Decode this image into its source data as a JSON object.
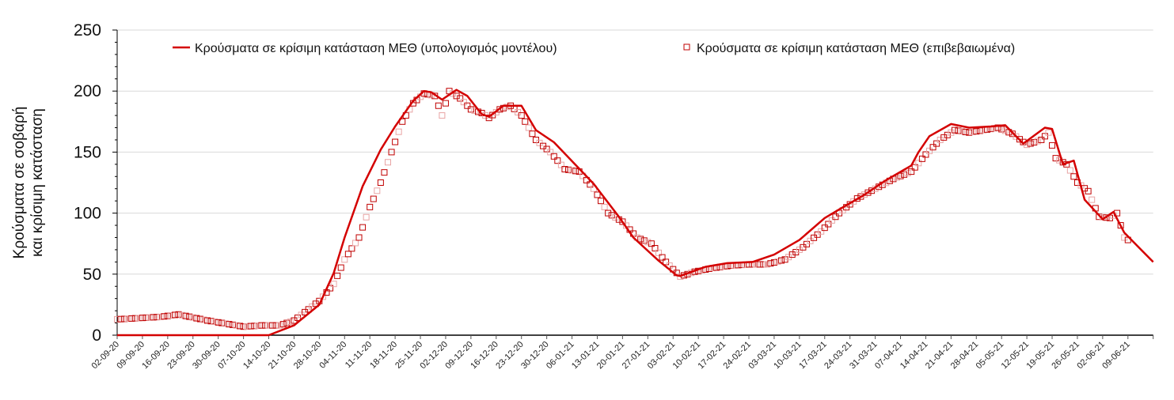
{
  "chart_data": {
    "type": "line",
    "title": "",
    "ylabel": [
      "Κρούσματα σε σοβαρή",
      "και κρίσιμη κατάσταση"
    ],
    "xlabel": "",
    "ylim": [
      0,
      250
    ],
    "yticks": [
      0,
      50,
      100,
      150,
      200,
      250
    ],
    "x_day_range": [
      0,
      287
    ],
    "x_tick_interval_days": 7,
    "x_tick_labels": [
      "02-09-20",
      "09-09-20",
      "16-09-20",
      "23-09-20",
      "30-09-20",
      "07-10-20",
      "14-10-20",
      "21-10-20",
      "28-10-20",
      "04-11-20",
      "11-11-20",
      "18-11-20",
      "25-11-20",
      "02-12-20",
      "09-12-20",
      "16-12-20",
      "23-12-20",
      "30-12-20",
      "06-01-21",
      "13-01-21",
      "20-01-21",
      "27-01-21",
      "03-02-21",
      "10-02-21",
      "17-02-21",
      "24-02-21",
      "03-03-21",
      "10-03-21",
      "17-03-21",
      "24-03-21",
      "31-03-21",
      "07-04-21",
      "14-04-21",
      "21-04-21",
      "28-04-21",
      "05-05-21",
      "12-05-21",
      "19-05-21",
      "26-05-21",
      "02-06-21",
      "09-06-21"
    ],
    "grid": true,
    "legend_position": "top",
    "series": [
      {
        "name": "Κρούσματα σε κρίσιμη κατάσταση ΜΕΘ (υπολογισμός μοντέλου)",
        "style": "line",
        "color": "#d40000",
        "points": [
          [
            0,
            0
          ],
          [
            42,
            0
          ],
          [
            49,
            8
          ],
          [
            56,
            25
          ],
          [
            60,
            51
          ],
          [
            63,
            80
          ],
          [
            68,
            122
          ],
          [
            73,
            152
          ],
          [
            77,
            171
          ],
          [
            82,
            192
          ],
          [
            85,
            200
          ],
          [
            87,
            199
          ],
          [
            90,
            193
          ],
          [
            94,
            201
          ],
          [
            97,
            196
          ],
          [
            101,
            181
          ],
          [
            103,
            179
          ],
          [
            107,
            188
          ],
          [
            112,
            188
          ],
          [
            116,
            168
          ],
          [
            121,
            158
          ],
          [
            132,
            124
          ],
          [
            139,
            97
          ],
          [
            143,
            80
          ],
          [
            150,
            61
          ],
          [
            155,
            49
          ],
          [
            156,
            48.5
          ],
          [
            163,
            56
          ],
          [
            169,
            59
          ],
          [
            176,
            60
          ],
          [
            182,
            66
          ],
          [
            189,
            78
          ],
          [
            196,
            96
          ],
          [
            200,
            103
          ],
          [
            207,
            115
          ],
          [
            213,
            127
          ],
          [
            220,
            139
          ],
          [
            222,
            150
          ],
          [
            225,
            163
          ],
          [
            231,
            173
          ],
          [
            236,
            170
          ],
          [
            242,
            171
          ],
          [
            246,
            172
          ],
          [
            251,
            157
          ],
          [
            257,
            170
          ],
          [
            259,
            169
          ],
          [
            262,
            140
          ],
          [
            265,
            143
          ],
          [
            268,
            111
          ],
          [
            273,
            95
          ],
          [
            276,
            101
          ],
          [
            279,
            84
          ],
          [
            284,
            69
          ],
          [
            287,
            60
          ]
        ]
      },
      {
        "name": "Κρούσματα σε κρίσιμη κατάσταση ΜΕΘ (επιβεβαιωμένα)",
        "style": "square-markers",
        "color": "#c00000",
        "points": [
          [
            0,
            13
          ],
          [
            12,
            15
          ],
          [
            17,
            17
          ],
          [
            25,
            12
          ],
          [
            35,
            7
          ],
          [
            40,
            8
          ],
          [
            45,
            8
          ],
          [
            49,
            12
          ],
          [
            56,
            28
          ],
          [
            60,
            42
          ],
          [
            63,
            62
          ],
          [
            67,
            80
          ],
          [
            70,
            105
          ],
          [
            73,
            125
          ],
          [
            76,
            150
          ],
          [
            79,
            175
          ],
          [
            82,
            190
          ],
          [
            85,
            198
          ],
          [
            88,
            196
          ],
          [
            90,
            180
          ],
          [
            92,
            200
          ],
          [
            95,
            194
          ],
          [
            98,
            185
          ],
          [
            101,
            182
          ],
          [
            103,
            178
          ],
          [
            106,
            185
          ],
          [
            109,
            188
          ],
          [
            112,
            180
          ],
          [
            116,
            160
          ],
          [
            120,
            150
          ],
          [
            124,
            136
          ],
          [
            128,
            134
          ],
          [
            132,
            120
          ],
          [
            136,
            100
          ],
          [
            140,
            93
          ],
          [
            144,
            80
          ],
          [
            148,
            75
          ],
          [
            152,
            60
          ],
          [
            156,
            48
          ],
          [
            160,
            52
          ],
          [
            165,
            55
          ],
          [
            170,
            57
          ],
          [
            175,
            58
          ],
          [
            180,
            58
          ],
          [
            185,
            62
          ],
          [
            190,
            72
          ],
          [
            195,
            85
          ],
          [
            200,
            100
          ],
          [
            205,
            112
          ],
          [
            210,
            120
          ],
          [
            215,
            128
          ],
          [
            220,
            134
          ],
          [
            224,
            148
          ],
          [
            228,
            160
          ],
          [
            232,
            168
          ],
          [
            236,
            166
          ],
          [
            240,
            168
          ],
          [
            244,
            170
          ],
          [
            248,
            165
          ],
          [
            252,
            156
          ],
          [
            256,
            160
          ],
          [
            258,
            166
          ],
          [
            260,
            145
          ],
          [
            263,
            140
          ],
          [
            266,
            125
          ],
          [
            269,
            118
          ],
          [
            272,
            97
          ],
          [
            275,
            96
          ],
          [
            277,
            100
          ],
          [
            279,
            80
          ],
          [
            280,
            78
          ]
        ]
      }
    ]
  }
}
